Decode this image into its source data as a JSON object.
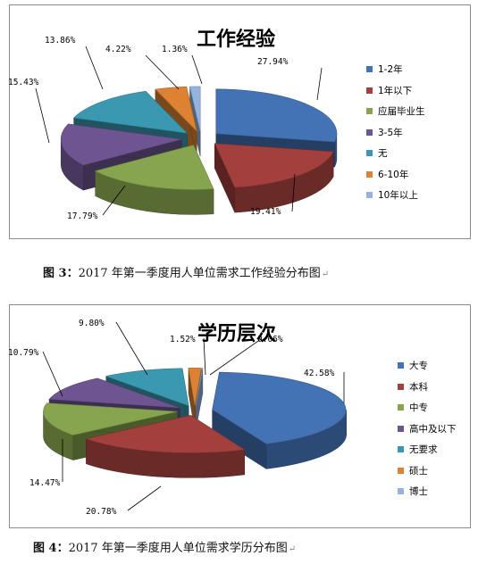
{
  "chart_data": [
    {
      "type": "pie",
      "title": "工作经验",
      "categories": [
        "1-2年",
        "1年以下",
        "应届毕业生",
        "3-5年",
        "无",
        "6-10年",
        "10年以上"
      ],
      "values": [
        27.94,
        19.41,
        17.79,
        15.43,
        13.86,
        4.22,
        1.36
      ],
      "value_labels": [
        "27.94%",
        "19.41%",
        "17.79%",
        "15.43%",
        "13.86%",
        "4.22%",
        "1.36%"
      ],
      "colors": [
        "#4372b5",
        "#a3403d",
        "#86a54e",
        "#6e5592",
        "#3a99b1",
        "#dc8232",
        "#94b4dd"
      ],
      "legend_position": "right"
    },
    {
      "type": "pie",
      "title": "学历层次",
      "categories": [
        "大专",
        "本科",
        "中专",
        "高中及以下",
        "无要求",
        "硕士",
        "博士"
      ],
      "values": [
        42.58,
        20.78,
        14.47,
        10.79,
        9.8,
        1.52,
        0.06
      ],
      "value_labels": [
        "42.58%",
        "20.78%",
        "14.47%",
        "10.79%",
        "9.80%",
        "1.52%",
        "0.06%"
      ],
      "colors": [
        "#4372b5",
        "#a3403d",
        "#86a54e",
        "#6e5592",
        "#3a99b1",
        "#dc8232",
        "#94b4dd"
      ],
      "legend_position": "right"
    }
  ],
  "captions": {
    "fig3_label": "图 3：",
    "fig3_text": "2017 年第一季度用人单位需求工作经验分布图",
    "fig4_label": "图 4：",
    "fig4_text": "2017 年第一季度用人单位需求学历分布图",
    "paragraph_mark": "↵"
  }
}
